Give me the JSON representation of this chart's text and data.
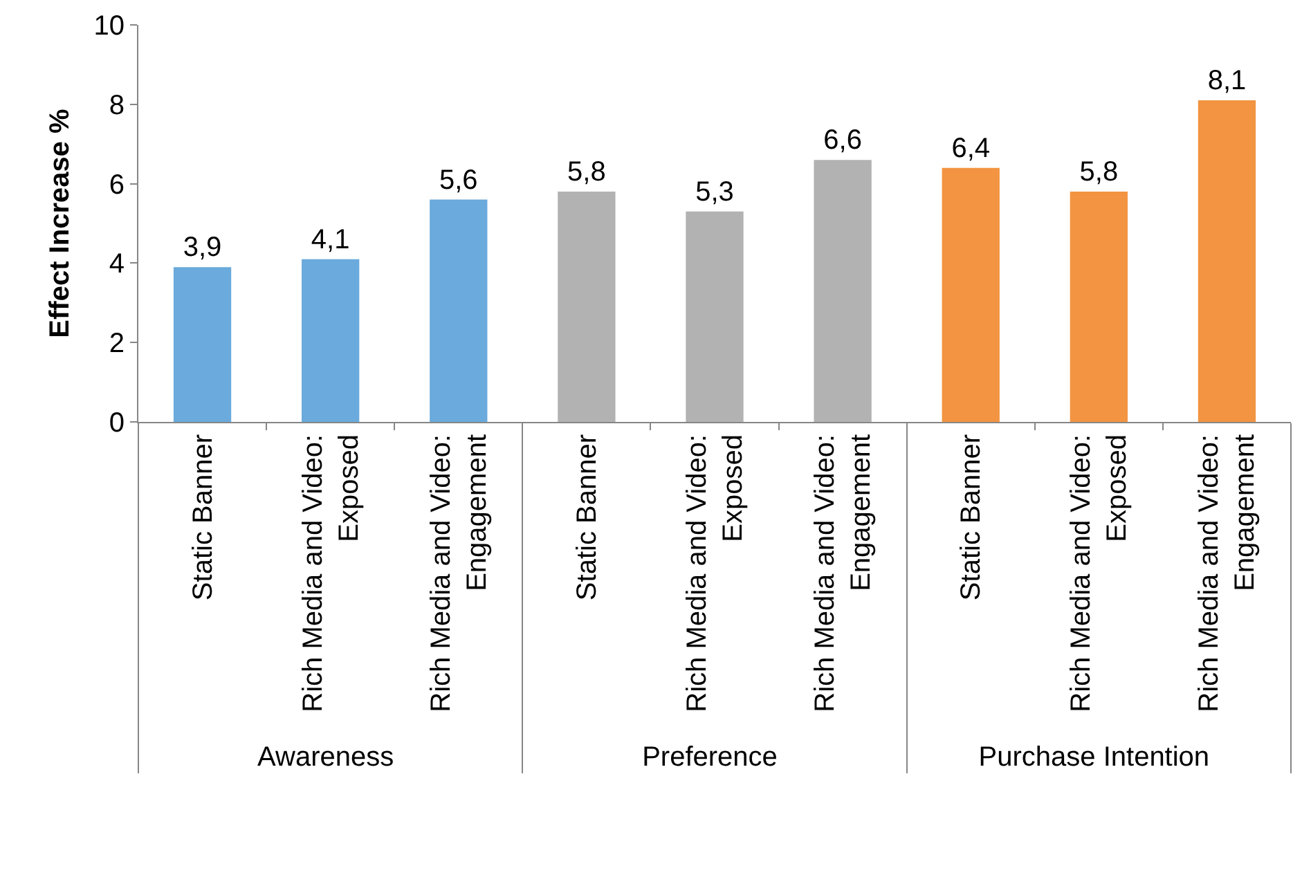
{
  "chart_data": {
    "type": "bar",
    "ylabel": "Effect Increase %",
    "categories": [
      "Static Banner",
      "Rich Media and Video: Exposed",
      "Rich Media and Video: Engagement",
      "Static Banner",
      "Rich Media and Video: Exposed",
      "Rich Media and Video: Engagement",
      "Static Banner",
      "Rich Media and Video: Exposed",
      "Rich Media and Video: Engagement"
    ],
    "values": [
      3.9,
      4.1,
      5.6,
      5.8,
      5.3,
      6.6,
      6.4,
      5.8,
      8.1
    ],
    "value_labels": [
      "3,9",
      "4,1",
      "5,6",
      "5,8",
      "5,3",
      "6,6",
      "6,4",
      "5,8",
      "8,1"
    ],
    "colors": [
      "#6aaadc",
      "#6aaadc",
      "#6aaadc",
      "#b2b2b2",
      "#b2b2b2",
      "#b2b2b2",
      "#f29441",
      "#f29441",
      "#f29441"
    ],
    "annotations": [
      "Awareness",
      "Preference",
      "Purchase Intention"
    ],
    "ylim": [
      0,
      10
    ],
    "yticks": [
      0,
      2,
      4,
      6,
      8,
      10
    ],
    "grid": false
  }
}
